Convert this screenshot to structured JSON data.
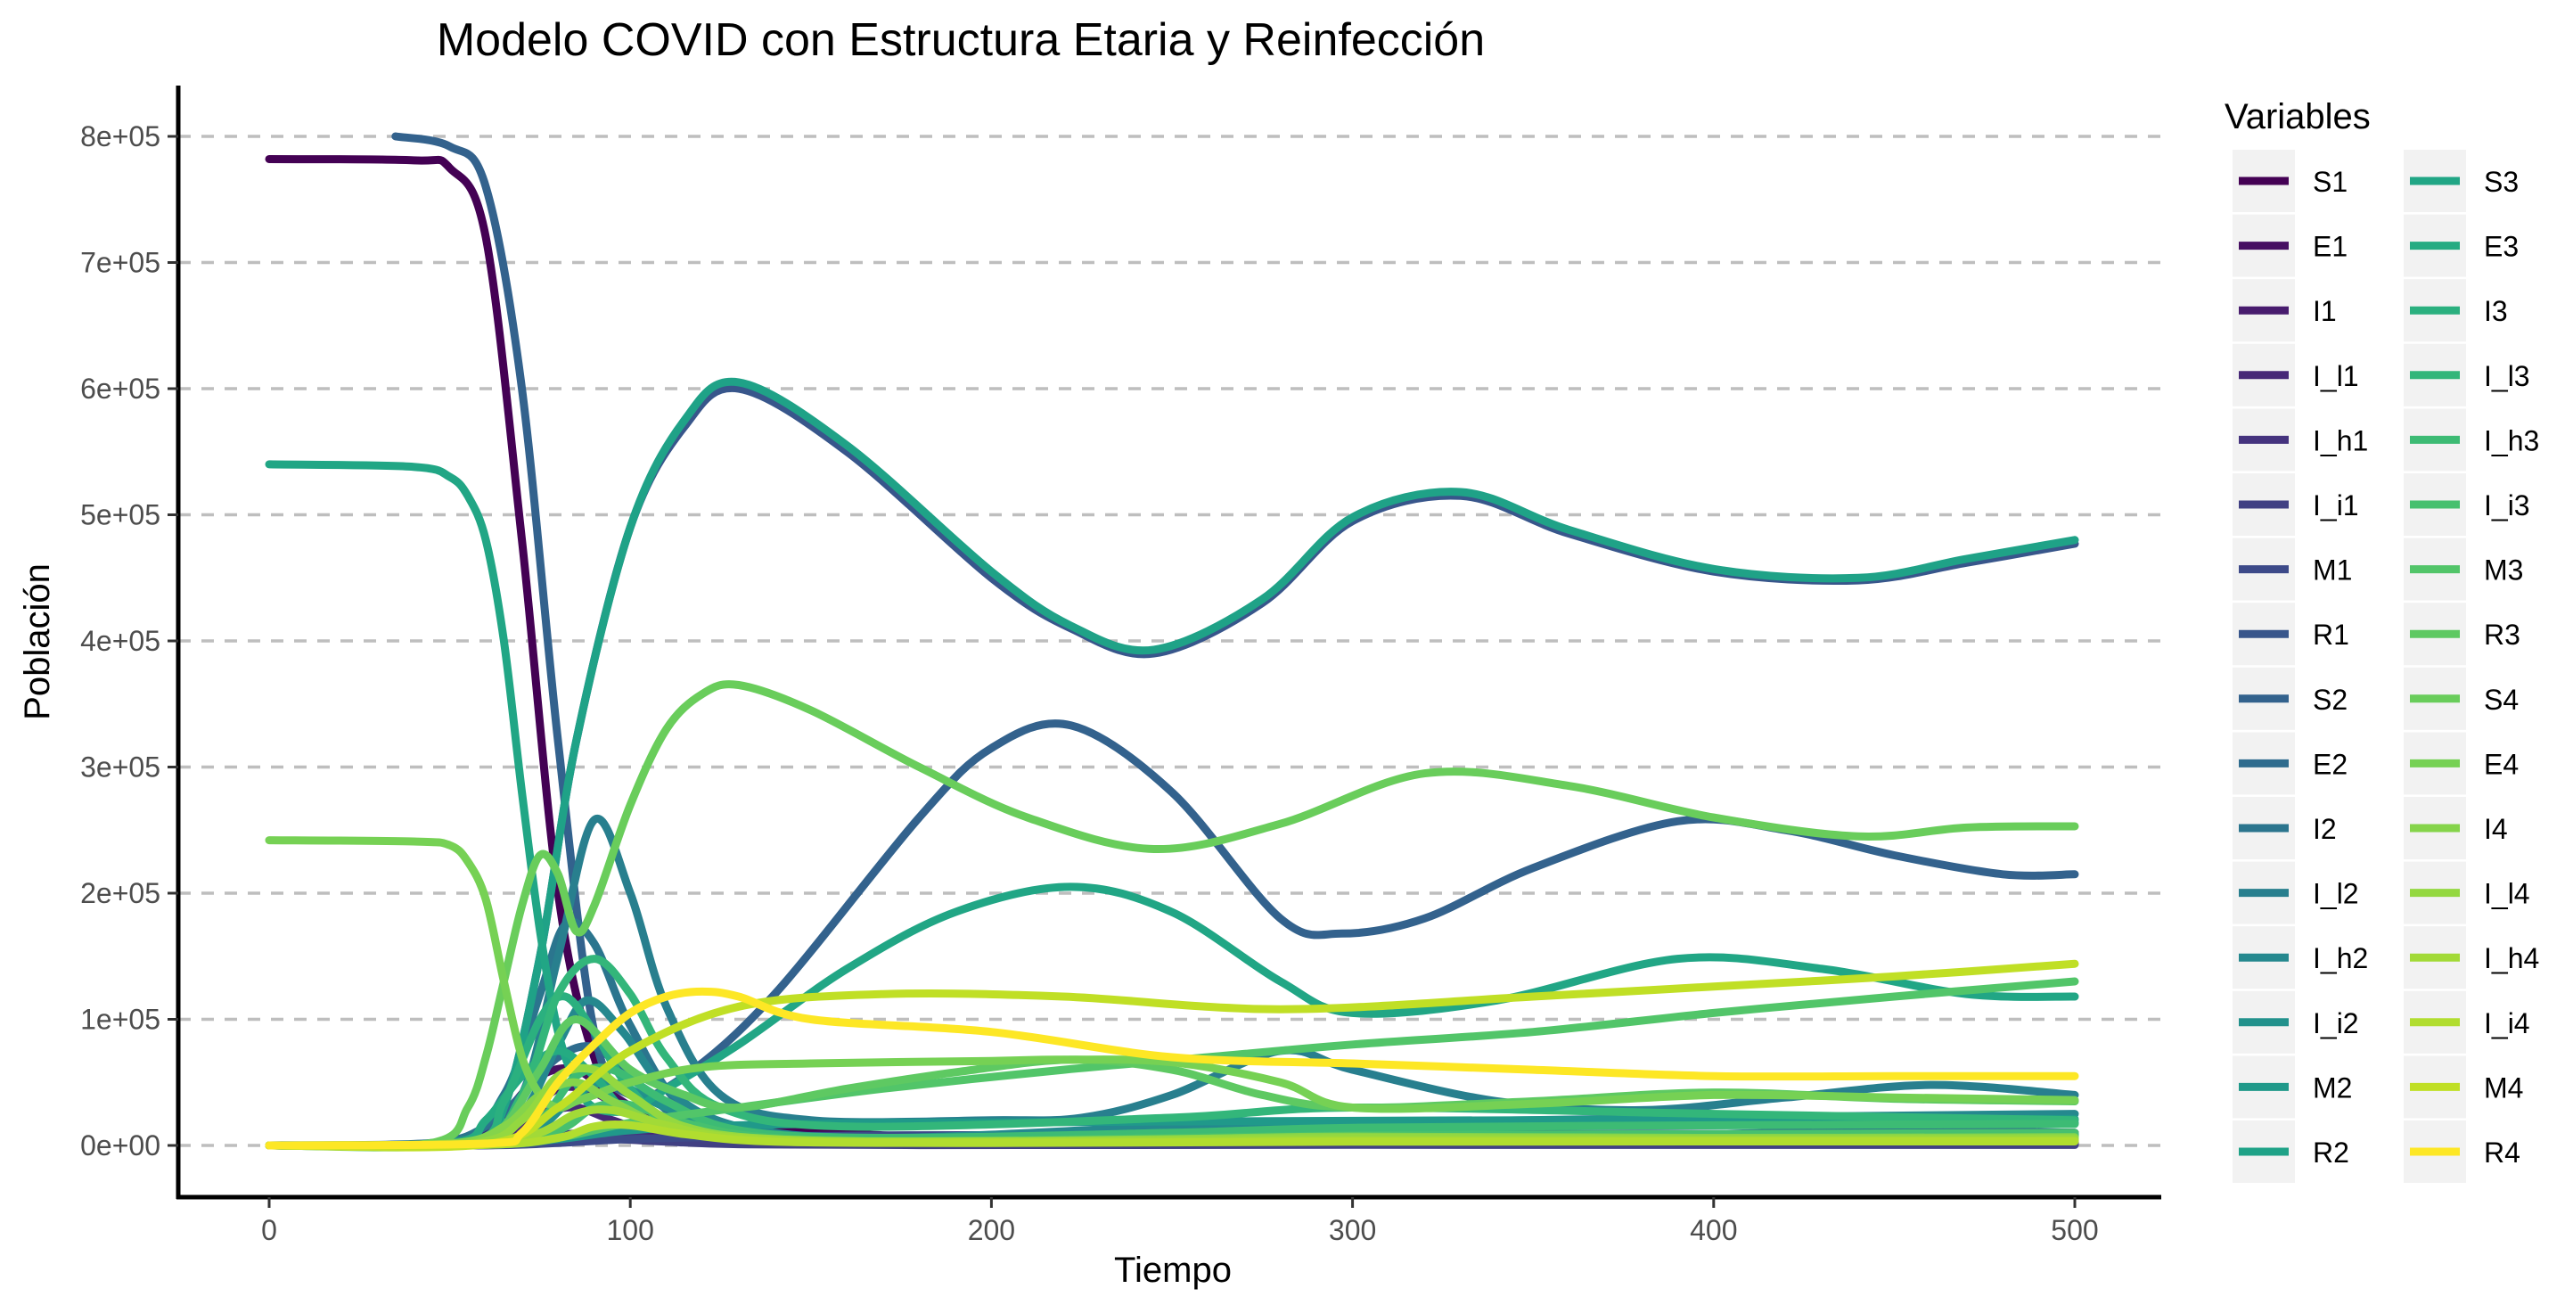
{
  "chart_data": {
    "type": "line",
    "title": "Modelo COVID con Estructura Etaria y Reinfección",
    "xlabel": "Tiempo",
    "ylabel": "Población",
    "xlim": [
      -25,
      525
    ],
    "ylim": [
      -40000,
      840000
    ],
    "x_ticks": [
      0,
      100,
      200,
      300,
      400,
      500
    ],
    "x_tick_labels": [
      "0",
      "100",
      "200",
      "300",
      "400",
      "500"
    ],
    "y_ticks": [
      0,
      100000,
      200000,
      300000,
      400000,
      500000,
      600000,
      700000,
      800000
    ],
    "y_tick_labels": [
      "0e+00",
      "1e+05",
      "2e+05",
      "3e+05",
      "4e+05",
      "5e+05",
      "6e+05",
      "7e+05",
      "8e+05"
    ],
    "grid": "horizontal dashed",
    "legend_title": "Variables",
    "legend_position": "right",
    "series": [
      {
        "name": "S1",
        "color": "#440154",
        "x": [
          0,
          40,
          50,
          60,
          70,
          80,
          90,
          100,
          130,
          170,
          200,
          225,
          250,
          280,
          300,
          350,
          400,
          450,
          500
        ],
        "y": [
          782000,
          781000,
          775000,
          720000,
          480000,
          200000,
          70000,
          30000,
          15000,
          8000,
          6000,
          6000,
          6000,
          7000,
          8000,
          8000,
          9000,
          10000,
          10000
        ]
      },
      {
        "name": "E1",
        "color": "#470F62",
        "x": [
          0,
          40,
          55,
          65,
          75,
          85,
          95,
          110,
          140,
          200,
          250,
          300,
          350,
          400,
          450,
          500
        ],
        "y": [
          0,
          400,
          5000,
          25000,
          55000,
          60000,
          40000,
          18000,
          6000,
          2000,
          3000,
          4000,
          3000,
          3500,
          4000,
          3500
        ]
      },
      {
        "name": "I1",
        "color": "#481C6E",
        "x": [
          0,
          45,
          60,
          70,
          80,
          90,
          100,
          115,
          150,
          200,
          250,
          300,
          350,
          400,
          450,
          500
        ],
        "y": [
          0,
          300,
          4000,
          20000,
          45000,
          42000,
          25000,
          10000,
          4000,
          1500,
          2000,
          3500,
          2500,
          3000,
          3500,
          3000
        ]
      },
      {
        "name": "I_l1",
        "color": "#472877",
        "x": [
          0,
          50,
          65,
          75,
          85,
          95,
          110,
          140,
          200,
          300,
          400,
          500
        ],
        "y": [
          0,
          300,
          8000,
          25000,
          30000,
          20000,
          8000,
          3000,
          1000,
          2000,
          1500,
          1800
        ]
      },
      {
        "name": "I_h1",
        "color": "#45337E",
        "x": [
          0,
          50,
          70,
          80,
          90,
          100,
          120,
          160,
          250,
          350,
          500
        ],
        "y": [
          0,
          100,
          2500,
          8000,
          10000,
          7000,
          2500,
          800,
          700,
          900,
          800
        ]
      },
      {
        "name": "I_i1",
        "color": "#414083",
        "x": [
          0,
          55,
          75,
          85,
          95,
          110,
          130,
          180,
          300,
          500
        ],
        "y": [
          0,
          50,
          1500,
          4000,
          5000,
          3000,
          1000,
          300,
          500,
          400
        ]
      },
      {
        "name": "M1",
        "color": "#3D4A89",
        "x": [
          0,
          60,
          80,
          100,
          130,
          170,
          250,
          350,
          500
        ],
        "y": [
          0,
          100,
          2000,
          5000,
          7000,
          8000,
          8500,
          9000,
          9500
        ]
      },
      {
        "name": "R1",
        "color": "#38568B",
        "x": [
          0,
          55,
          65,
          75,
          85,
          100,
          115,
          130,
          160,
          200,
          222,
          245,
          275,
          300,
          330,
          360,
          400,
          440,
          470,
          500
        ],
        "y": [
          0,
          3000,
          30000,
          150000,
          320000,
          490000,
          570000,
          600000,
          550000,
          450000,
          410000,
          390000,
          430000,
          495000,
          515000,
          485000,
          455000,
          448000,
          462000,
          477000
        ]
      },
      {
        "name": "S2",
        "color": "#33628D",
        "x": [
          35,
          50,
          60,
          70,
          80,
          90,
          100,
          115,
          140,
          180,
          200,
          222,
          250,
          280,
          297,
          320,
          350,
          390,
          420,
          450,
          480,
          500
        ],
        "y": [
          800000,
          792000,
          760000,
          600000,
          320000,
          90000,
          40000,
          55000,
          120000,
          260000,
          315000,
          333000,
          280000,
          180000,
          168000,
          180000,
          220000,
          257000,
          250000,
          230000,
          215000,
          215000
        ]
      },
      {
        "name": "E2",
        "color": "#2F6C8E",
        "x": [
          0,
          45,
          60,
          70,
          80,
          90,
          100,
          115,
          140,
          200,
          250,
          280,
          320,
          350,
          400,
          450,
          500
        ],
        "y": [
          0,
          2000,
          15000,
          40000,
          70000,
          78000,
          55000,
          20000,
          7000,
          5000,
          8000,
          12000,
          9000,
          7000,
          9000,
          12000,
          10000
        ]
      },
      {
        "name": "I2",
        "color": "#2B758E",
        "x": [
          0,
          50,
          65,
          75,
          82,
          90,
          100,
          115,
          140,
          200,
          250,
          280,
          320,
          350,
          400,
          450,
          500
        ],
        "y": [
          0,
          3000,
          40000,
          120000,
          175000,
          160000,
          95000,
          30000,
          9000,
          4000,
          7000,
          10000,
          8000,
          6000,
          8000,
          10000,
          9000
        ]
      },
      {
        "name": "I_l2",
        "color": "#287F8E",
        "x": [
          0,
          55,
          70,
          80,
          90,
          100,
          110,
          125,
          150,
          200,
          225,
          250,
          280,
          300,
          340,
          380,
          420,
          460,
          500
        ],
        "y": [
          0,
          3000,
          40000,
          150000,
          258000,
          200000,
          110000,
          40000,
          20000,
          20000,
          22000,
          40000,
          75000,
          60000,
          35000,
          28000,
          38000,
          48000,
          40000
        ]
      },
      {
        "name": "I_h2",
        "color": "#25888E",
        "x": [
          0,
          55,
          70,
          80,
          88,
          98,
          110,
          130,
          170,
          250,
          300,
          400,
          500
        ],
        "y": [
          0,
          2000,
          25000,
          80000,
          115000,
          90000,
          45000,
          15000,
          6000,
          15000,
          18000,
          22000,
          25000
        ]
      },
      {
        "name": "I_i2",
        "color": "#22918C",
        "x": [
          0,
          60,
          75,
          85,
          95,
          110,
          130,
          170,
          250,
          300,
          400,
          500
        ],
        "y": [
          0,
          1000,
          15000,
          40000,
          50000,
          30000,
          12000,
          5000,
          10000,
          14000,
          16000,
          18000
        ]
      },
      {
        "name": "M2",
        "color": "#20998A",
        "x": [
          0,
          60,
          80,
          100,
          130,
          180,
          250,
          350,
          500
        ],
        "y": [
          0,
          500,
          5000,
          12000,
          16000,
          18000,
          19000,
          20000,
          21000
        ]
      },
      {
        "name": "R2",
        "color": "#1FA287",
        "x": [
          0,
          55,
          65,
          75,
          85,
          100,
          115,
          130,
          160,
          200,
          222,
          245,
          275,
          300,
          330,
          360,
          400,
          440,
          470,
          500
        ],
        "y": [
          0,
          3000,
          30000,
          150000,
          320000,
          490000,
          575000,
          605000,
          555000,
          455000,
          412000,
          393000,
          433000,
          498000,
          518000,
          488000,
          457000,
          450000,
          465000,
          480000
        ]
      },
      {
        "name": "S3",
        "color": "#21A685",
        "x": [
          0,
          40,
          50,
          55,
          60,
          65,
          70,
          75,
          80,
          85,
          90,
          100,
          110,
          130,
          160,
          190,
          222,
          250,
          280,
          300,
          340,
          390,
          430,
          470,
          500
        ],
        "y": [
          540000,
          538000,
          530000,
          515000,
          480000,
          400000,
          280000,
          170000,
          90000,
          50000,
          30000,
          28000,
          45000,
          80000,
          140000,
          185000,
          205000,
          185000,
          130000,
          105000,
          115000,
          148000,
          140000,
          120000,
          118000
        ]
      },
      {
        "name": "E3",
        "color": "#25AB82",
        "x": [
          0,
          50,
          60,
          70,
          80,
          90,
          100,
          120,
          160,
          250,
          300,
          400,
          500
        ],
        "y": [
          0,
          2000,
          20000,
          55000,
          75000,
          55000,
          25000,
          8000,
          4000,
          7000,
          9000,
          8000,
          8500
        ]
      },
      {
        "name": "I3",
        "color": "#2BB07F",
        "x": [
          0,
          55,
          65,
          75,
          82,
          90,
          100,
          115,
          150,
          250,
          300,
          400,
          500
        ],
        "y": [
          0,
          3000,
          35000,
          100000,
          118000,
          90000,
          45000,
          12000,
          4000,
          6000,
          8000,
          7000,
          7500
        ]
      },
      {
        "name": "I_l3",
        "color": "#33B67A",
        "x": [
          0,
          55,
          70,
          80,
          90,
          100,
          110,
          125,
          160,
          250,
          300,
          400,
          500
        ],
        "y": [
          0,
          2000,
          40000,
          120000,
          148000,
          120000,
          70000,
          30000,
          15000,
          22000,
          30000,
          25000,
          20000
        ]
      },
      {
        "name": "I_h3",
        "color": "#3DBB74",
        "x": [
          0,
          60,
          75,
          85,
          95,
          110,
          130,
          170,
          250,
          300,
          400,
          500
        ],
        "y": [
          0,
          1500,
          20000,
          55000,
          60000,
          35000,
          12000,
          6000,
          10000,
          14000,
          16000,
          17000
        ]
      },
      {
        "name": "I_i3",
        "color": "#47C06F",
        "x": [
          0,
          60,
          80,
          90,
          100,
          115,
          140,
          200,
          300,
          400,
          500
        ],
        "y": [
          0,
          800,
          12000,
          30000,
          32000,
          18000,
          6000,
          4000,
          8000,
          9000,
          10000
        ]
      },
      {
        "name": "M3",
        "color": "#52C569",
        "x": [
          0,
          60,
          80,
          100,
          130,
          170,
          220,
          260,
          300,
          350,
          400,
          450,
          500
        ],
        "y": [
          0,
          500,
          6000,
          18000,
          30000,
          45000,
          60000,
          70000,
          80000,
          90000,
          105000,
          118000,
          130000
        ]
      },
      {
        "name": "R3",
        "color": "#5EC962",
        "x": [
          0,
          55,
          65,
          75,
          85,
          100,
          115,
          130,
          160,
          190,
          222,
          250,
          275,
          300,
          350,
          400,
          450,
          500
        ],
        "y": [
          0,
          2000,
          15000,
          60000,
          100000,
          60000,
          40000,
          30000,
          45000,
          58000,
          68000,
          60000,
          40000,
          30000,
          35000,
          42000,
          37000,
          35000
        ]
      },
      {
        "name": "S4",
        "color": "#69CD5B",
        "x": [
          0,
          45,
          55,
          60,
          65,
          70,
          75,
          80,
          85,
          90,
          100,
          110,
          120,
          130,
          150,
          180,
          210,
          245,
          280,
          320,
          360,
          400,
          440,
          470,
          500
        ],
        "y": [
          0,
          2000,
          30000,
          70000,
          130000,
          190000,
          230000,
          215000,
          170000,
          190000,
          270000,
          330000,
          358000,
          365000,
          345000,
          300000,
          260000,
          235000,
          255000,
          295000,
          285000,
          260000,
          245000,
          252000,
          253000
        ]
      },
      {
        "name": "E4",
        "color": "#76D154",
        "x": [
          0,
          40,
          50,
          55,
          60,
          65,
          70,
          75,
          80,
          85,
          90,
          100,
          120,
          150,
          200,
          220,
          250,
          280,
          300,
          350,
          400,
          450,
          500
        ],
        "y": [
          242000,
          241000,
          238000,
          225000,
          195000,
          130000,
          70000,
          40000,
          30000,
          35000,
          40000,
          50000,
          62000,
          65000,
          67000,
          68000,
          66000,
          50000,
          30000,
          33000,
          40000,
          38000,
          36000
        ]
      },
      {
        "name": "I4",
        "color": "#85D44A",
        "x": [
          0,
          50,
          65,
          75,
          85,
          95,
          110,
          130,
          170,
          250,
          300,
          400,
          500
        ],
        "y": [
          0,
          1500,
          15000,
          40000,
          50000,
          35000,
          15000,
          6000,
          3000,
          5000,
          7000,
          6000,
          6500
        ]
      },
      {
        "name": "I_l4",
        "color": "#94D840",
        "x": [
          0,
          55,
          70,
          80,
          90,
          100,
          115,
          140,
          200,
          300,
          400,
          500
        ],
        "y": [
          0,
          1500,
          20000,
          55000,
          60000,
          40000,
          15000,
          5000,
          3000,
          6000,
          5000,
          5500
        ]
      },
      {
        "name": "I_h4",
        "color": "#A2DA37",
        "x": [
          0,
          60,
          75,
          85,
          95,
          110,
          130,
          180,
          300,
          400,
          500
        ],
        "y": [
          0,
          1000,
          10000,
          25000,
          28000,
          16000,
          6000,
          3000,
          4000,
          4000,
          4200
        ]
      },
      {
        "name": "I_i4",
        "color": "#B1DD2F",
        "x": [
          0,
          60,
          80,
          90,
          100,
          115,
          140,
          200,
          300,
          500
        ],
        "y": [
          0,
          500,
          6000,
          15000,
          16000,
          9000,
          3000,
          2000,
          3000,
          3200
        ]
      },
      {
        "name": "M4",
        "color": "#C0DF25",
        "x": [
          0,
          60,
          80,
          100,
          130,
          170,
          220,
          280,
          350,
          400,
          450,
          500
        ],
        "y": [
          0,
          1000,
          30000,
          75000,
          110000,
          120000,
          118000,
          108000,
          118000,
          126000,
          134000,
          144000
        ]
      },
      {
        "name": "R4",
        "color": "#FDE725",
        "x": [
          0,
          60,
          70,
          80,
          90,
          100,
          110,
          120,
          130,
          150,
          200,
          250,
          300,
          350,
          400,
          450,
          500
        ],
        "y": [
          0,
          1500,
          10000,
          50000,
          80000,
          105000,
          118000,
          122000,
          118000,
          100000,
          90000,
          70000,
          65000,
          60000,
          55000,
          55000,
          55000
        ]
      }
    ]
  }
}
